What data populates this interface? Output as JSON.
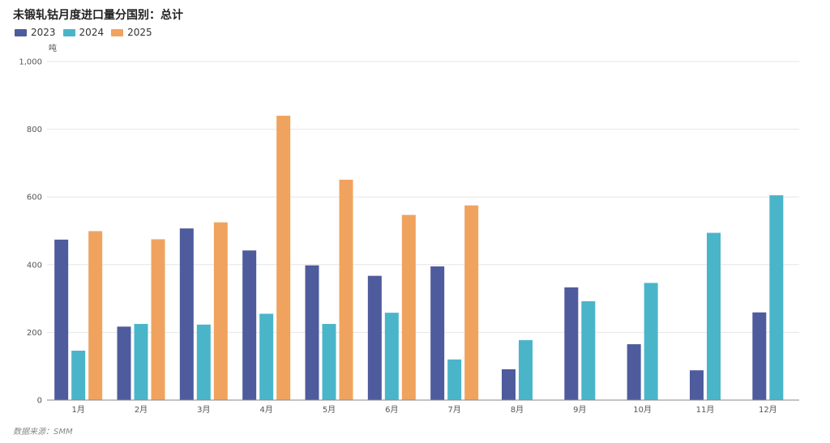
{
  "chart_data": {
    "type": "bar",
    "title": "未锻轧钴月度进口量分国别：总计",
    "unit": "吨",
    "source": "数据来源：SMM",
    "categories": [
      "1月",
      "2月",
      "3月",
      "4月",
      "5月",
      "6月",
      "7月",
      "8月",
      "9月",
      "10月",
      "11月",
      "12月"
    ],
    "series": [
      {
        "name": "2023",
        "color": "#4e5b9c",
        "values": [
          474,
          217,
          507,
          442,
          398,
          367,
          395,
          91,
          333,
          165,
          88,
          259
        ]
      },
      {
        "name": "2024",
        "color": "#4ab5c9",
        "values": [
          146,
          225,
          223,
          255,
          225,
          258,
          120,
          177,
          292,
          346,
          494,
          605
        ]
      },
      {
        "name": "2025",
        "color": "#f0a35e",
        "values": [
          499,
          475,
          525,
          840,
          651,
          547,
          575,
          null,
          null,
          null,
          null,
          null
        ]
      }
    ],
    "y_ticks": [
      "0",
      "200",
      "400",
      "600",
      "800",
      "1,000"
    ],
    "ylim": [
      0,
      1000
    ],
    "grid": true,
    "legend_position": "top-left"
  }
}
